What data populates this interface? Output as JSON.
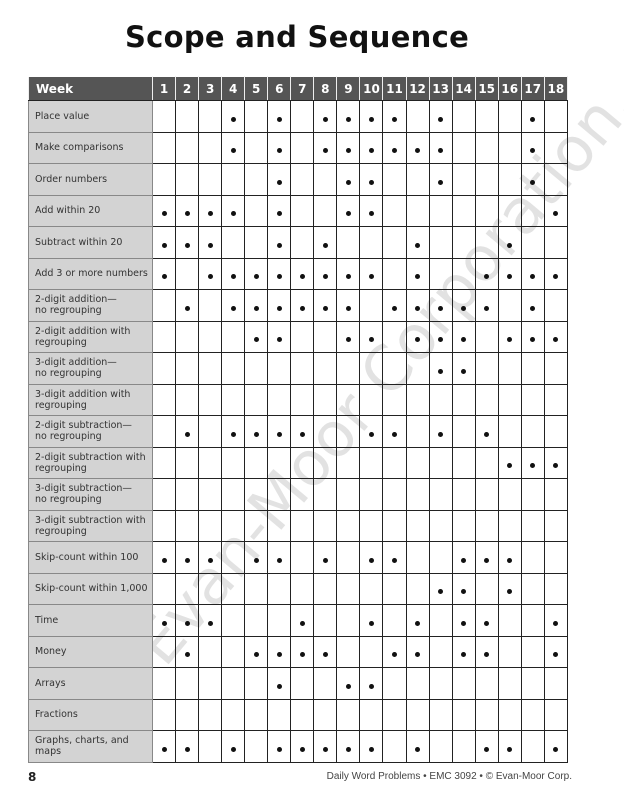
{
  "title": "Scope and Sequence",
  "table": {
    "header_label": "Week",
    "weeks": [
      "1",
      "2",
      "3",
      "4",
      "5",
      "6",
      "7",
      "8",
      "9",
      "10",
      "11",
      "12",
      "13",
      "14",
      "15",
      "16",
      "17",
      "18"
    ],
    "rows": [
      {
        "skill": "Place value",
        "weeks": [
          4,
          6,
          8,
          9,
          10,
          11,
          13,
          17
        ]
      },
      {
        "skill": "Make comparisons",
        "weeks": [
          4,
          6,
          8,
          9,
          10,
          11,
          12,
          13,
          17
        ]
      },
      {
        "skill": "Order numbers",
        "weeks": [
          6,
          9,
          10,
          13,
          17
        ]
      },
      {
        "skill": "Add within 20",
        "weeks": [
          1,
          2,
          3,
          4,
          6,
          9,
          10,
          18
        ]
      },
      {
        "skill": "Subtract within 20",
        "weeks": [
          1,
          2,
          3,
          6,
          8,
          12,
          16
        ]
      },
      {
        "skill": "Add 3 or more numbers",
        "weeks": [
          1,
          3,
          4,
          5,
          6,
          7,
          8,
          9,
          10,
          12,
          15,
          16,
          17,
          18
        ]
      },
      {
        "skill": "2-digit addition—\nno regrouping",
        "weeks": [
          2,
          4,
          5,
          6,
          7,
          8,
          9,
          11,
          12,
          13,
          14,
          15,
          17
        ]
      },
      {
        "skill": "2-digit addition with\nregrouping",
        "weeks": [
          5,
          6,
          9,
          10,
          12,
          13,
          14,
          16,
          17,
          18
        ]
      },
      {
        "skill": "3-digit addition—\nno regrouping",
        "weeks": [
          13,
          14
        ]
      },
      {
        "skill": "3-digit addition with\nregrouping",
        "weeks": []
      },
      {
        "skill": "2-digit subtraction—\nno regrouping",
        "weeks": [
          2,
          4,
          5,
          6,
          7,
          10,
          11,
          13,
          15
        ]
      },
      {
        "skill": "2-digit subtraction with\nregrouping",
        "weeks": [
          16,
          17,
          18
        ]
      },
      {
        "skill": "3-digit subtraction—\nno regrouping",
        "weeks": []
      },
      {
        "skill": "3-digit subtraction with\nregrouping",
        "weeks": []
      },
      {
        "skill": "Skip-count within 100",
        "weeks": [
          1,
          2,
          3,
          5,
          6,
          8,
          10,
          11,
          14,
          15,
          16
        ]
      },
      {
        "skill": "Skip-count within 1,000",
        "weeks": [
          13,
          14,
          16
        ]
      },
      {
        "skill": "Time",
        "weeks": [
          1,
          2,
          3,
          7,
          10,
          12,
          14,
          15,
          18
        ]
      },
      {
        "skill": "Money",
        "weeks": [
          2,
          5,
          6,
          7,
          8,
          11,
          12,
          14,
          15,
          18
        ]
      },
      {
        "skill": "Arrays",
        "weeks": [
          6,
          9,
          10
        ]
      },
      {
        "skill": "Fractions",
        "weeks": []
      },
      {
        "skill": "Graphs, charts, and\nmaps",
        "weeks": [
          1,
          2,
          4,
          6,
          7,
          8,
          9,
          10,
          12,
          15,
          16,
          18
        ]
      }
    ]
  },
  "watermark": "© Evan-Moor Corporation.",
  "footer": {
    "page_number": "8",
    "credit": "Daily Word Problems • EMC 3092 • © Evan-Moor Corp."
  }
}
